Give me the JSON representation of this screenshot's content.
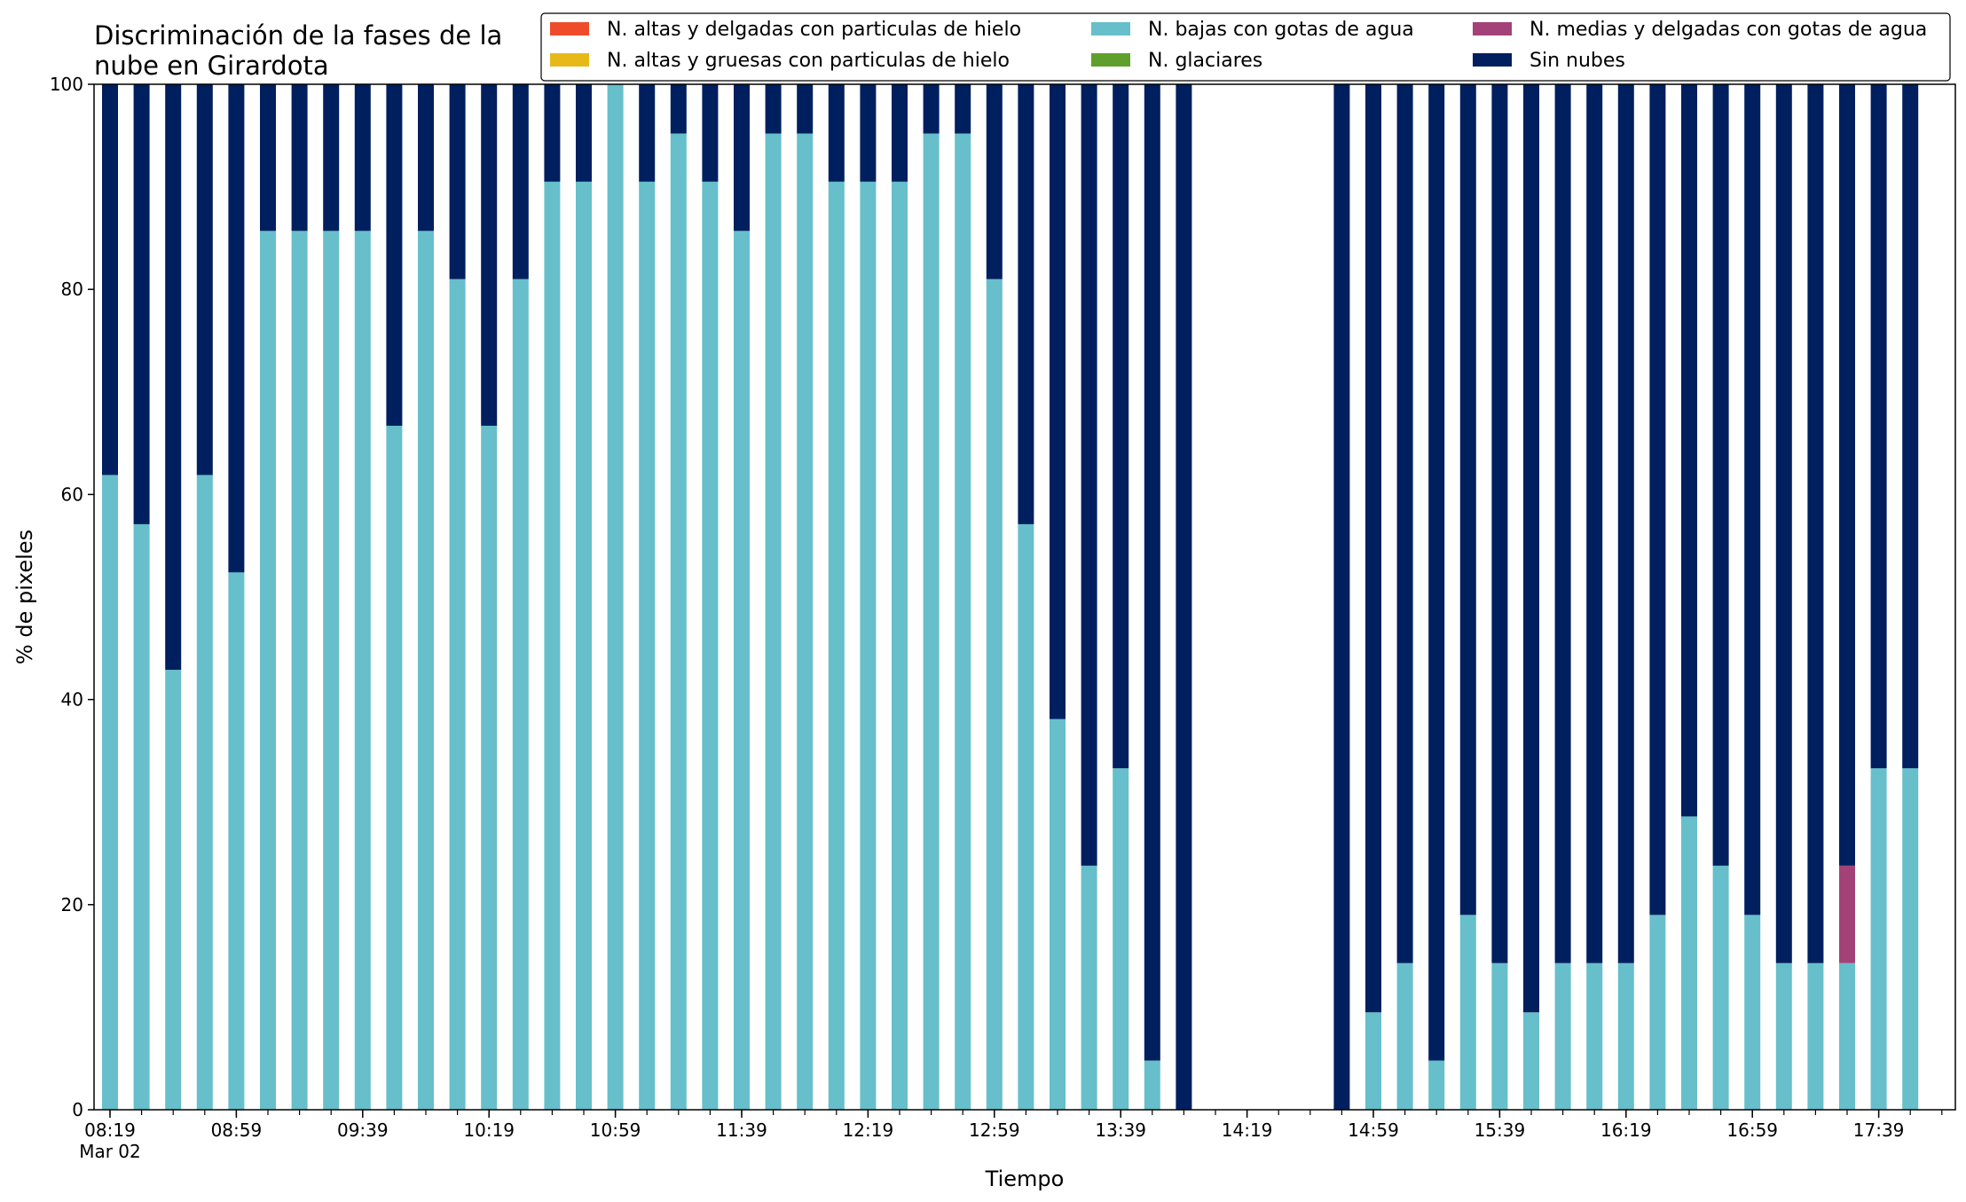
{
  "chart_data": {
    "type": "bar",
    "stacked": true,
    "title_lines": [
      "Discriminación de la fases de la",
      "nube en Girardota"
    ],
    "xlabel": "Tiempo",
    "ylabel": "% de pixeles",
    "ylim": [
      0,
      100
    ],
    "yticks": [
      0,
      20,
      40,
      60,
      80,
      100
    ],
    "xtick_labels": [
      "08:19",
      "08:59",
      "09:39",
      "10:19",
      "10:59",
      "11:39",
      "12:19",
      "12:59",
      "13:39",
      "14:19",
      "14:59",
      "15:39",
      "16:19",
      "16:59",
      "17:39"
    ],
    "xtick_sublabel": "Mar 02",
    "time_start_label": "08:19",
    "interval_minutes": 10,
    "legend_position": "top-right",
    "legend": [
      {
        "name": "N. altas y delgadas con particulas de hielo",
        "color": "#ee4b2b"
      },
      {
        "name": "N. altas y gruesas con particulas de hielo",
        "color": "#e6b919"
      },
      {
        "name": "N. bajas con gotas de agua",
        "color": "#66bfca"
      },
      {
        "name": "N. glaciares",
        "color": "#5fa02d"
      },
      {
        "name": "N. medias y delgadas con gotas de agua",
        "color": "#a34278"
      },
      {
        "name": "Sin nubes",
        "color": "#001f5f"
      }
    ],
    "series": [
      {
        "name": "N. altas y delgadas con particulas de hielo",
        "color": "#ee4b2b",
        "values": [
          0,
          0,
          0,
          0,
          0,
          0,
          0,
          0,
          0,
          0,
          0,
          0,
          0,
          0,
          0,
          0,
          0,
          0,
          0,
          0,
          0,
          0,
          0,
          0,
          0,
          0,
          0,
          0,
          0,
          0,
          0,
          0,
          0,
          0,
          0,
          0,
          0,
          0,
          0,
          0,
          0,
          0,
          0,
          0,
          0,
          0,
          0,
          0,
          0,
          0,
          0,
          0,
          0,
          0,
          0,
          0,
          0,
          0,
          0
        ]
      },
      {
        "name": "N. altas y gruesas con particulas de hielo",
        "color": "#e6b919",
        "values": [
          0,
          0,
          0,
          0,
          0,
          0,
          0,
          0,
          0,
          0,
          0,
          0,
          0,
          0,
          0,
          0,
          0,
          0,
          0,
          0,
          0,
          0,
          0,
          0,
          0,
          0,
          0,
          0,
          0,
          0,
          0,
          0,
          0,
          0,
          0,
          0,
          0,
          0,
          0,
          0,
          0,
          0,
          0,
          0,
          0,
          0,
          0,
          0,
          0,
          0,
          0,
          0,
          0,
          0,
          0,
          0,
          0,
          0,
          0
        ]
      },
      {
        "name": "N. bajas con gotas de agua",
        "color": "#66bfca",
        "values": [
          61.9,
          57.1,
          42.9,
          61.9,
          52.4,
          85.7,
          85.7,
          85.7,
          85.7,
          66.7,
          85.7,
          81.0,
          66.7,
          81.0,
          90.5,
          90.5,
          100,
          90.5,
          95.2,
          90.5,
          85.7,
          95.2,
          95.2,
          90.5,
          90.5,
          90.5,
          95.2,
          95.2,
          81.0,
          57.1,
          38.1,
          23.8,
          33.3,
          4.8,
          0,
          0,
          0,
          0,
          0,
          0,
          9.5,
          14.3,
          4.8,
          19.0,
          14.3,
          9.5,
          14.3,
          14.3,
          14.3,
          19.0,
          28.6,
          23.8,
          19.0,
          14.3,
          14.3,
          14.3,
          33.3,
          33.3,
          0
        ]
      },
      {
        "name": "N. glaciares",
        "color": "#5fa02d",
        "values": [
          0,
          0,
          0,
          0,
          0,
          0,
          0,
          0,
          0,
          0,
          0,
          0,
          0,
          0,
          0,
          0,
          0,
          0,
          0,
          0,
          0,
          0,
          0,
          0,
          0,
          0,
          0,
          0,
          0,
          0,
          0,
          0,
          0,
          0,
          0,
          0,
          0,
          0,
          0,
          0,
          0,
          0,
          0,
          0,
          0,
          0,
          0,
          0,
          0,
          0,
          0,
          0,
          0,
          0,
          0,
          0,
          0,
          0,
          0
        ]
      },
      {
        "name": "N. medias y delgadas con gotas de agua",
        "color": "#a34278",
        "values": [
          0,
          0,
          0,
          0,
          0,
          0,
          0,
          0,
          0,
          0,
          0,
          0,
          0,
          0,
          0,
          0,
          0,
          0,
          0,
          0,
          0,
          0,
          0,
          0,
          0,
          0,
          0,
          0,
          0,
          0,
          0,
          0,
          0,
          0,
          0,
          0,
          0,
          0,
          0,
          0,
          0,
          0,
          0,
          0,
          0,
          0,
          0,
          0,
          0,
          0,
          0,
          0,
          0,
          0,
          0,
          9.5,
          0,
          0,
          0
        ]
      },
      {
        "name": "Sin nubes",
        "color": "#001f5f",
        "values": [
          38.1,
          42.9,
          57.1,
          38.1,
          47.6,
          14.3,
          14.3,
          14.3,
          14.3,
          33.3,
          14.3,
          19.0,
          33.3,
          19.0,
          9.5,
          9.5,
          0,
          9.5,
          4.8,
          9.5,
          14.3,
          4.8,
          4.8,
          9.5,
          9.5,
          9.5,
          4.8,
          4.8,
          19.0,
          42.9,
          61.9,
          76.2,
          66.7,
          95.2,
          100,
          0,
          0,
          0,
          0,
          100,
          90.5,
          85.7,
          95.2,
          81.0,
          85.7,
          90.5,
          85.7,
          85.7,
          85.7,
          81.0,
          71.4,
          76.2,
          81.0,
          85.7,
          85.7,
          76.2,
          66.7,
          66.7,
          0
        ]
      }
    ]
  }
}
